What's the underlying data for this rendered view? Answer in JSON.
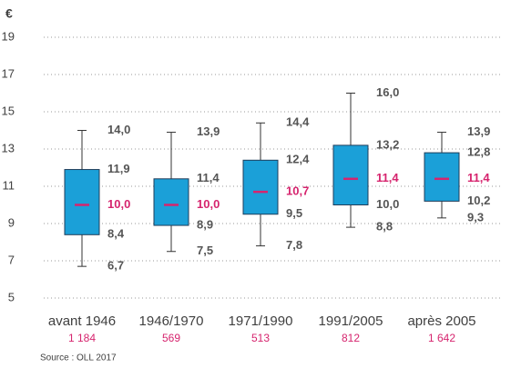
{
  "chart_data": {
    "type": "box",
    "y_unit": "€",
    "categories": [
      "avant 1946",
      "1946/1970",
      "1971/1990",
      "1991/2005",
      "après 2005"
    ],
    "counts": [
      1184,
      569,
      513,
      812,
      1642
    ],
    "count_labels": [
      "1 184",
      "569",
      "513",
      "812",
      "1 642"
    ],
    "stats": {
      "max": {
        "values": [
          14.0,
          13.9,
          14.4,
          16.0,
          13.9
        ],
        "value_labels": [
          "14,0",
          "13,9",
          "14,4",
          "16,0",
          "13,9"
        ]
      },
      "q3": {
        "values": [
          11.9,
          11.4,
          12.4,
          13.2,
          12.8
        ],
        "value_labels": [
          "11,9",
          "11,4",
          "12,4",
          "13,2",
          "12,8"
        ]
      },
      "median": {
        "values": [
          10.0,
          10.0,
          10.7,
          11.4,
          11.4
        ],
        "value_labels": [
          "10,0",
          "10,0",
          "10,7",
          "11,4",
          "11,4"
        ]
      },
      "q1": {
        "values": [
          8.4,
          8.9,
          9.5,
          10.0,
          10.2
        ],
        "value_labels": [
          "8,4",
          "8,9",
          "9,5",
          "10,0",
          "10,2"
        ]
      },
      "min": {
        "values": [
          6.7,
          7.5,
          7.8,
          8.8,
          9.3
        ],
        "value_labels": [
          "6,7",
          "7,5",
          "7,8",
          "8,8",
          "9,3"
        ]
      }
    },
    "box_color": "#1ba0d8",
    "median_color": "#d6246e",
    "ylim": [
      5,
      19
    ],
    "yticks": [
      5,
      7,
      9,
      11,
      13,
      15,
      17,
      19
    ],
    "grid": true,
    "source": "Source : OLL 2017"
  }
}
